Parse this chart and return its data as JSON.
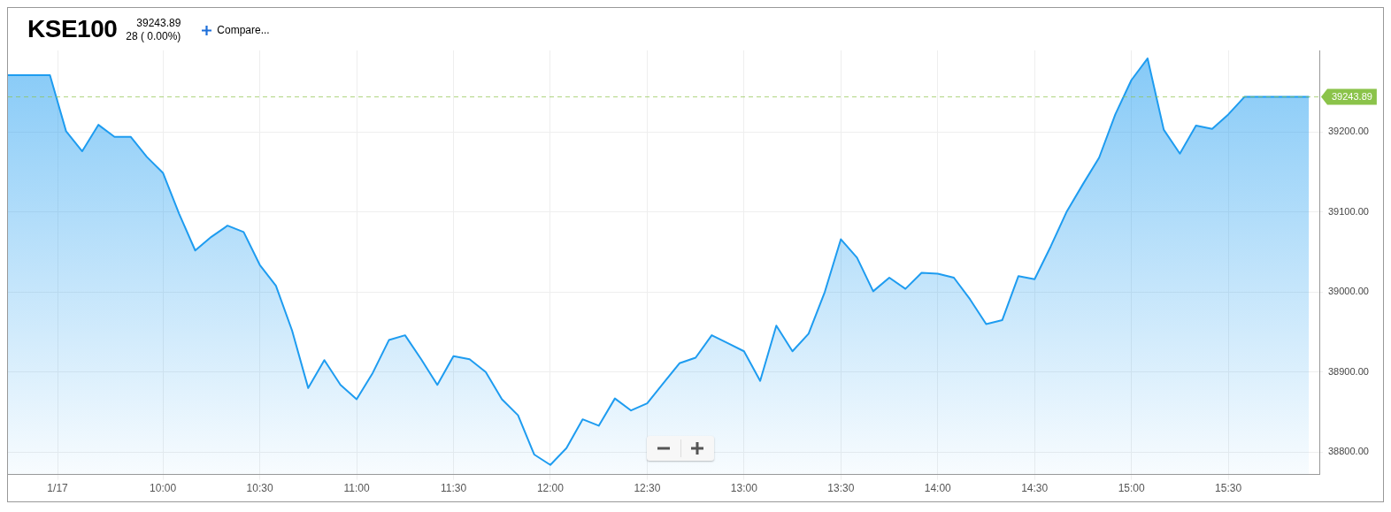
{
  "chart_data": {
    "type": "area",
    "title": "KSE100",
    "subtitle": "39243.89",
    "annotations": [
      "28 ( 0.00%)",
      "Compare..."
    ],
    "x": [
      9.2,
      9.4167,
      9.5,
      9.5833,
      9.6667,
      9.75,
      9.8333,
      9.9167,
      10,
      10.0833,
      10.1667,
      10.25,
      10.3333,
      10.4167,
      10.5,
      10.5833,
      10.6667,
      10.75,
      10.8333,
      10.9167,
      11,
      11.0833,
      11.1667,
      11.25,
      11.3333,
      11.4167,
      11.5,
      11.5833,
      11.6667,
      11.75,
      11.8333,
      11.9167,
      12,
      12.0833,
      12.1667,
      12.25,
      12.3333,
      12.4167,
      12.5,
      12.5833,
      12.6667,
      12.75,
      12.8333,
      12.9167,
      13,
      13.0833,
      13.1667,
      13.25,
      13.3333,
      13.4167,
      13.5,
      13.5833,
      13.6667,
      13.75,
      13.8333,
      13.9167,
      14,
      14.0833,
      14.1667,
      14.25,
      14.3333,
      14.4167,
      14.5,
      14.5833,
      14.6667,
      14.75,
      14.8333,
      14.9167,
      15,
      15.0833,
      15.1667,
      15.25,
      15.3333,
      15.4167,
      15.5,
      15.5833,
      15.9167
    ],
    "series": [
      {
        "color": "#1e9cf0",
        "values": [
          39271,
          39271,
          39201,
          39176,
          39209,
          39194,
          39194,
          39169,
          39149,
          39098,
          39052,
          39069,
          39083,
          39075,
          39034,
          39008,
          38952,
          38880,
          38915,
          38884,
          38866,
          38899,
          38940,
          38946,
          38916,
          38884,
          38920,
          38916,
          38900,
          38866,
          38846,
          38797,
          38784,
          38805,
          38841,
          38833,
          38867,
          38852,
          38861,
          38886,
          38911,
          38918,
          38946,
          38936,
          38926,
          38889,
          38958,
          38926,
          38948,
          39000,
          39066,
          39043,
          39001,
          39018,
          39004,
          39024,
          39023,
          39018,
          38991,
          38960,
          38965,
          39020,
          39016,
          39057,
          39101,
          39135,
          39168,
          39222,
          39265,
          39292,
          39203,
          39173,
          39208,
          39204,
          39222,
          39243.89,
          39243.89
        ]
      }
    ],
    "xlim": [
      9.2,
      15.97
    ],
    "xticks": [
      {
        "value": 9.456,
        "label": "1/17"
      },
      {
        "value": 10,
        "label": "10:00"
      },
      {
        "value": 10.5,
        "label": "10:30"
      },
      {
        "value": 11,
        "label": "11:00"
      },
      {
        "value": 11.5,
        "label": "11:30"
      },
      {
        "value": 12,
        "label": "12:00"
      },
      {
        "value": 12.5,
        "label": "12:30"
      },
      {
        "value": 13,
        "label": "13:00"
      },
      {
        "value": 13.5,
        "label": "13:30"
      },
      {
        "value": 14,
        "label": "14:00"
      },
      {
        "value": 14.5,
        "label": "14:30"
      },
      {
        "value": 15,
        "label": "15:00"
      },
      {
        "value": 15.5,
        "label": "15:30"
      }
    ],
    "ylim": [
      38772,
      39302
    ],
    "yticks": [
      {
        "value": 38800,
        "label": "38800.00"
      },
      {
        "value": 38900,
        "label": "38900.00"
      },
      {
        "value": 39000,
        "label": "39000.00"
      },
      {
        "value": 39100,
        "label": "39100.00"
      },
      {
        "value": 39200,
        "label": "39200.00"
      }
    ],
    "ref_lines": [
      {
        "axis": "y",
        "value": 39243.89,
        "label": "39243.89",
        "color": "#8bc34a",
        "line_style": "dashed"
      }
    ],
    "grid": true
  }
}
